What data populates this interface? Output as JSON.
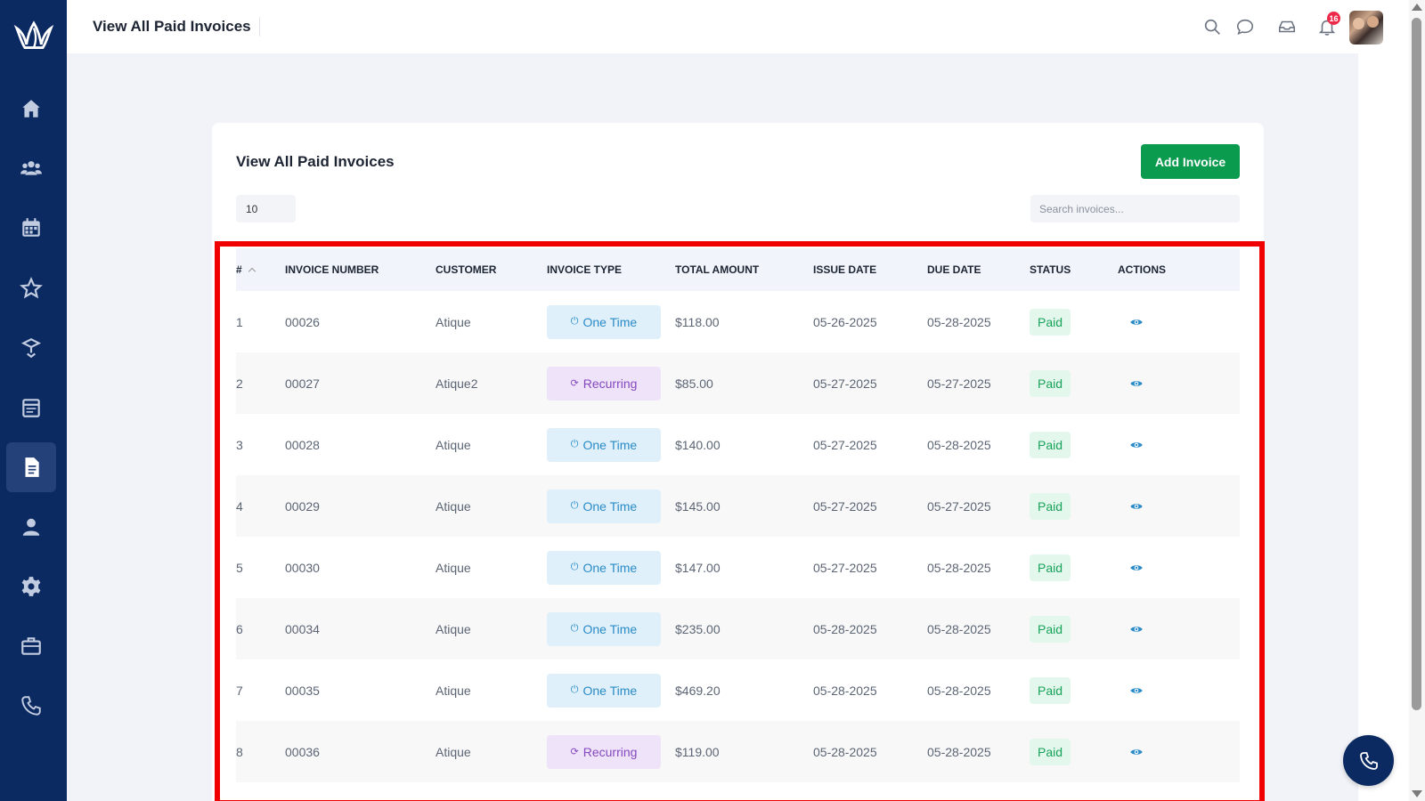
{
  "topbar": {
    "title": "View All Paid Invoices",
    "notification_count": "16",
    "icons": [
      "search-icon",
      "chat-icon",
      "inbox-icon",
      "bell-icon"
    ]
  },
  "sidebar": {
    "items": [
      {
        "icon": "home-icon"
      },
      {
        "icon": "users-icon"
      },
      {
        "icon": "calendar-icon"
      },
      {
        "icon": "star-icon"
      },
      {
        "icon": "box-icon"
      },
      {
        "icon": "schedule-icon"
      },
      {
        "icon": "invoice-icon",
        "active": true
      },
      {
        "icon": "user-icon"
      },
      {
        "icon": "gear-icon"
      },
      {
        "icon": "briefcase-icon"
      },
      {
        "icon": "phone-icon"
      }
    ]
  },
  "card": {
    "title": "View All Paid Invoices",
    "add_button_label": "Add Invoice",
    "page_size": "10",
    "search_placeholder": "Search invoices..."
  },
  "table": {
    "headers": {
      "num": "#",
      "invoice_number": "INVOICE NUMBER",
      "customer": "CUSTOMER",
      "invoice_type": "INVOICE TYPE",
      "total_amount": "TOTAL AMOUNT",
      "issue_date": "ISSUE DATE",
      "due_date": "DUE DATE",
      "status": "STATUS",
      "actions": "ACTIONS"
    },
    "rows": [
      {
        "num": "1",
        "invoice_number": "00026",
        "customer": "Atique",
        "type": "One Time",
        "type_kind": "onetime",
        "total": "$118.00",
        "issue": "05-26-2025",
        "due": "05-28-2025",
        "status": "Paid"
      },
      {
        "num": "2",
        "invoice_number": "00027",
        "customer": "Atique2",
        "type": "Recurring",
        "type_kind": "recurring",
        "total": "$85.00",
        "issue": "05-27-2025",
        "due": "05-27-2025",
        "status": "Paid"
      },
      {
        "num": "3",
        "invoice_number": "00028",
        "customer": "Atique",
        "type": "One Time",
        "type_kind": "onetime",
        "total": "$140.00",
        "issue": "05-27-2025",
        "due": "05-28-2025",
        "status": "Paid"
      },
      {
        "num": "4",
        "invoice_number": "00029",
        "customer": "Atique",
        "type": "One Time",
        "type_kind": "onetime",
        "total": "$145.00",
        "issue": "05-27-2025",
        "due": "05-27-2025",
        "status": "Paid"
      },
      {
        "num": "5",
        "invoice_number": "00030",
        "customer": "Atique",
        "type": "One Time",
        "type_kind": "onetime",
        "total": "$147.00",
        "issue": "05-27-2025",
        "due": "05-28-2025",
        "status": "Paid"
      },
      {
        "num": "6",
        "invoice_number": "00034",
        "customer": "Atique",
        "type": "One Time",
        "type_kind": "onetime",
        "total": "$235.00",
        "issue": "05-28-2025",
        "due": "05-28-2025",
        "status": "Paid"
      },
      {
        "num": "7",
        "invoice_number": "00035",
        "customer": "Atique",
        "type": "One Time",
        "type_kind": "onetime",
        "total": "$469.20",
        "issue": "05-28-2025",
        "due": "05-28-2025",
        "status": "Paid"
      },
      {
        "num": "8",
        "invoice_number": "00036",
        "customer": "Atique",
        "type": "Recurring",
        "type_kind": "recurring",
        "total": "$119.00",
        "issue": "05-28-2025",
        "due": "05-28-2025",
        "status": "Paid"
      }
    ]
  },
  "colors": {
    "sidebar": "#0c2a62",
    "primary_green": "#0a9b4f",
    "highlight_frame": "#f00000",
    "one_time_bg": "#dff0fb",
    "recurring_bg": "#efe3f9",
    "paid_bg": "#e4f7ec"
  }
}
